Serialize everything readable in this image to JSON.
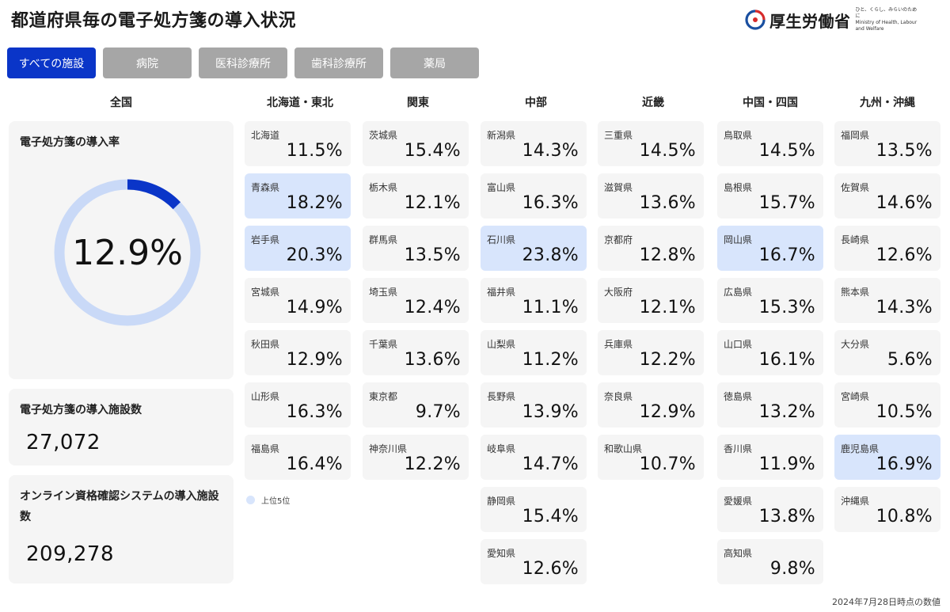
{
  "page_title": "都道府県毎の電子処方箋の導入状況",
  "logo": {
    "name": "厚生労働省",
    "tagline": "ひと、くらし、みらいのために",
    "english": "Ministry of Health, Labour and Welfare",
    "icon": "mhlw-logo-icon"
  },
  "tabs": [
    {
      "label": "すべての施設",
      "active": true
    },
    {
      "label": "病院",
      "active": false
    },
    {
      "label": "医科診療所",
      "active": false
    },
    {
      "label": "歯科診療所",
      "active": false
    },
    {
      "label": "薬局",
      "active": false
    }
  ],
  "national": {
    "heading": "全国",
    "rate_label": "電子処方箋の導入率",
    "rate_value": "12.9%",
    "rate_fraction": 0.129,
    "facilities_label": "電子処方箋の導入施設数",
    "facilities_value": "27,072",
    "online_label": "オンライン資格確認システムの導入施設数",
    "online_value": "209,278"
  },
  "regions": [
    {
      "name": "北海道・東北",
      "prefectures": [
        {
          "name": "北海道",
          "value": "11.5%",
          "top5": false
        },
        {
          "name": "青森県",
          "value": "18.2%",
          "top5": true
        },
        {
          "name": "岩手県",
          "value": "20.3%",
          "top5": true
        },
        {
          "name": "宮城県",
          "value": "14.9%",
          "top5": false
        },
        {
          "name": "秋田県",
          "value": "12.9%",
          "top5": false
        },
        {
          "name": "山形県",
          "value": "16.3%",
          "top5": false
        },
        {
          "name": "福島県",
          "value": "16.4%",
          "top5": false
        }
      ]
    },
    {
      "name": "関東",
      "prefectures": [
        {
          "name": "茨城県",
          "value": "15.4%",
          "top5": false
        },
        {
          "name": "栃木県",
          "value": "12.1%",
          "top5": false
        },
        {
          "name": "群馬県",
          "value": "13.5%",
          "top5": false
        },
        {
          "name": "埼玉県",
          "value": "12.4%",
          "top5": false
        },
        {
          "name": "千葉県",
          "value": "13.6%",
          "top5": false
        },
        {
          "name": "東京都",
          "value": "9.7%",
          "top5": false
        },
        {
          "name": "神奈川県",
          "value": "12.2%",
          "top5": false
        }
      ]
    },
    {
      "name": "中部",
      "prefectures": [
        {
          "name": "新潟県",
          "value": "14.3%",
          "top5": false
        },
        {
          "name": "富山県",
          "value": "16.3%",
          "top5": false
        },
        {
          "name": "石川県",
          "value": "23.8%",
          "top5": true
        },
        {
          "name": "福井県",
          "value": "11.1%",
          "top5": false
        },
        {
          "name": "山梨県",
          "value": "11.2%",
          "top5": false
        },
        {
          "name": "長野県",
          "value": "13.9%",
          "top5": false
        },
        {
          "name": "岐阜県",
          "value": "14.7%",
          "top5": false
        },
        {
          "name": "静岡県",
          "value": "15.4%",
          "top5": false
        },
        {
          "name": "愛知県",
          "value": "12.6%",
          "top5": false
        }
      ]
    },
    {
      "name": "近畿",
      "prefectures": [
        {
          "name": "三重県",
          "value": "14.5%",
          "top5": false
        },
        {
          "name": "滋賀県",
          "value": "13.6%",
          "top5": false
        },
        {
          "name": "京都府",
          "value": "12.8%",
          "top5": false
        },
        {
          "name": "大阪府",
          "value": "12.1%",
          "top5": false
        },
        {
          "name": "兵庫県",
          "value": "12.2%",
          "top5": false
        },
        {
          "name": "奈良県",
          "value": "12.9%",
          "top5": false
        },
        {
          "name": "和歌山県",
          "value": "10.7%",
          "top5": false
        }
      ]
    },
    {
      "name": "中国・四国",
      "prefectures": [
        {
          "name": "鳥取県",
          "value": "14.5%",
          "top5": false
        },
        {
          "name": "島根県",
          "value": "15.7%",
          "top5": false
        },
        {
          "name": "岡山県",
          "value": "16.7%",
          "top5": true
        },
        {
          "name": "広島県",
          "value": "15.3%",
          "top5": false
        },
        {
          "name": "山口県",
          "value": "16.1%",
          "top5": false
        },
        {
          "name": "徳島県",
          "value": "13.2%",
          "top5": false
        },
        {
          "name": "香川県",
          "value": "11.9%",
          "top5": false
        },
        {
          "name": "愛媛県",
          "value": "13.8%",
          "top5": false
        },
        {
          "name": "高知県",
          "value": "9.8%",
          "top5": false
        }
      ]
    },
    {
      "name": "九州・沖縄",
      "prefectures": [
        {
          "name": "福岡県",
          "value": "13.5%",
          "top5": false
        },
        {
          "name": "佐賀県",
          "value": "14.6%",
          "top5": false
        },
        {
          "name": "長崎県",
          "value": "12.6%",
          "top5": false
        },
        {
          "name": "熊本県",
          "value": "14.3%",
          "top5": false
        },
        {
          "name": "大分県",
          "value": "5.6%",
          "top5": false
        },
        {
          "name": "宮崎県",
          "value": "10.5%",
          "top5": false
        },
        {
          "name": "鹿児島県",
          "value": "16.9%",
          "top5": true
        },
        {
          "name": "沖縄県",
          "value": "10.8%",
          "top5": false
        }
      ]
    }
  ],
  "legend": {
    "label": "上位5位",
    "color": "#d8e5fc"
  },
  "footnote": "2024年7月28日時点の数値",
  "colors": {
    "accent": "#0a35c8",
    "donut_track": "#c9d9f7",
    "tab_inactive": "#a6a6a6",
    "card_bg": "#f5f5f5",
    "top5_bg": "#d8e5fc"
  }
}
